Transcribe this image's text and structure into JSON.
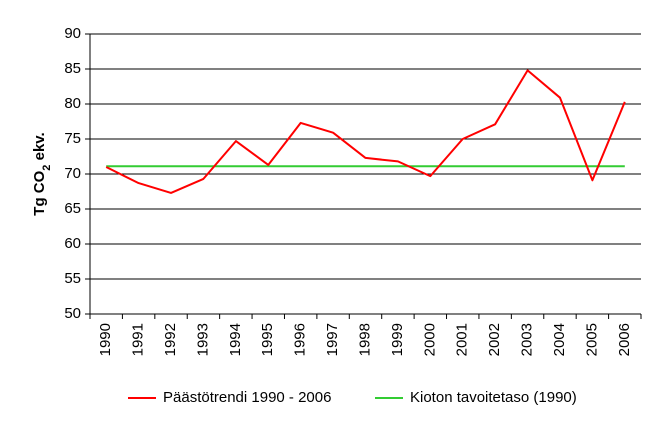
{
  "chart_data": {
    "type": "line",
    "ylabel": {
      "prefix": "Tg CO",
      "sub": "2",
      "suffix": " ekv."
    },
    "ylim": [
      50,
      90
    ],
    "yticks": [
      50,
      55,
      60,
      65,
      70,
      75,
      80,
      85,
      90
    ],
    "grid": true,
    "legend_position": "bottom",
    "x": [
      "1990",
      "1991",
      "1992",
      "1993",
      "1994",
      "1995",
      "1996",
      "1997",
      "1998",
      "1999",
      "2000",
      "2001",
      "2002",
      "2003",
      "2004",
      "2005",
      "2006"
    ],
    "series": [
      {
        "name": "Päästötrendi 1990 - 2006",
        "color": "#ff0000",
        "values": [
          71.0,
          68.7,
          67.3,
          69.3,
          74.7,
          71.3,
          77.3,
          75.9,
          72.3,
          71.8,
          69.7,
          75.0,
          77.1,
          84.8,
          80.9,
          69.1,
          80.3
        ]
      },
      {
        "name": "Kioton tavoitetaso (1990)",
        "color": "#33cc33",
        "values": [
          71.1,
          71.1,
          71.1,
          71.1,
          71.1,
          71.1,
          71.1,
          71.1,
          71.1,
          71.1,
          71.1,
          71.1,
          71.1,
          71.1,
          71.1,
          71.1,
          71.1
        ]
      }
    ]
  }
}
